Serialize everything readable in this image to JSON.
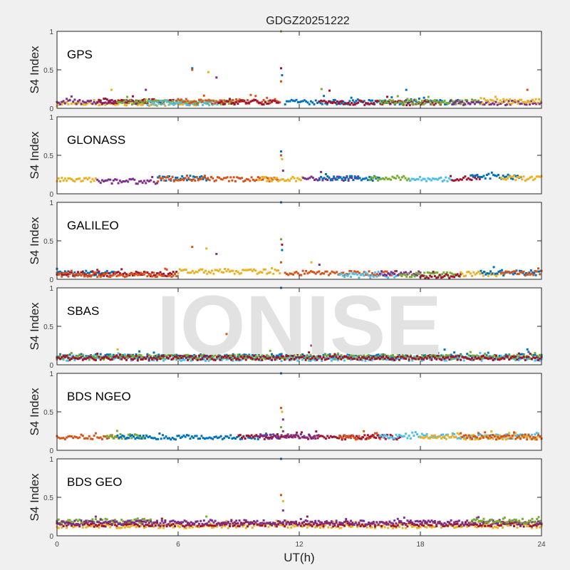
{
  "chart_data": {
    "type": "scatter",
    "title": "GDGZ20251222",
    "xlabel": "UT(h)",
    "ylabel": "S4 Index",
    "xlim": [
      0,
      24
    ],
    "ylim": [
      0,
      1
    ],
    "xticks": [
      "0",
      "6",
      "12",
      "18",
      "24"
    ],
    "yticks": [
      "0",
      "0.5",
      "1"
    ],
    "watermark": "IONISE",
    "colors": {
      "blue": "#0072BD",
      "orange": "#D95319",
      "yellow": "#EDB120",
      "purple": "#7E2F8E",
      "green": "#77AC30",
      "lightblue": "#4DBEEE",
      "red": "#A2142F"
    },
    "panels": [
      {
        "label": "GPS",
        "segments": [
          {
            "color": "yellow",
            "start": 0,
            "end": 7,
            "mean": 0.06
          },
          {
            "color": "purple",
            "start": 0,
            "end": 4.5,
            "mean": 0.08
          },
          {
            "color": "red",
            "start": 2,
            "end": 6,
            "mean": 0.09
          },
          {
            "color": "green",
            "start": 3,
            "end": 9,
            "mean": 0.08
          },
          {
            "color": "lightblue",
            "start": 4.5,
            "end": 8,
            "mean": 0.07
          },
          {
            "color": "orange",
            "start": 6,
            "end": 11.1,
            "mean": 0.09
          },
          {
            "color": "red",
            "start": 8,
            "end": 11,
            "mean": 0.08
          },
          {
            "color": "blue",
            "start": 11.3,
            "end": 20,
            "mean": 0.08
          },
          {
            "color": "red",
            "start": 13,
            "end": 19,
            "mean": 0.07
          },
          {
            "color": "green",
            "start": 16,
            "end": 21,
            "mean": 0.08
          },
          {
            "color": "purple",
            "start": 19.5,
            "end": 24,
            "mean": 0.07
          },
          {
            "color": "yellow",
            "start": 21,
            "end": 24,
            "mean": 0.09
          }
        ],
        "outliers": [
          [
            6.7,
            0.52
          ],
          [
            6.7,
            0.5
          ],
          [
            7.5,
            0.47
          ],
          [
            7.9,
            0.4
          ],
          [
            11.1,
            1.0
          ],
          [
            11.1,
            0.52
          ],
          [
            11.15,
            0.43
          ],
          [
            11.1,
            0.35
          ],
          [
            2.7,
            0.24
          ],
          [
            4.4,
            0.24
          ],
          [
            13.1,
            0.25
          ],
          [
            13.5,
            0.23
          ],
          [
            17.3,
            0.24
          ],
          [
            23.3,
            0.24
          ]
        ]
      },
      {
        "label": "GLONASS",
        "segments": [
          {
            "color": "yellow",
            "start": 0,
            "end": 2,
            "mean": 0.18
          },
          {
            "color": "purple",
            "start": 2,
            "end": 5,
            "mean": 0.16
          },
          {
            "color": "blue",
            "start": 5,
            "end": 7.5,
            "mean": 0.2
          },
          {
            "color": "orange",
            "start": 5,
            "end": 11,
            "mean": 0.19
          },
          {
            "color": "yellow",
            "start": 10,
            "end": 12.2,
            "mean": 0.19
          },
          {
            "color": "purple",
            "start": 12.2,
            "end": 15,
            "mean": 0.2
          },
          {
            "color": "blue",
            "start": 13,
            "end": 16,
            "mean": 0.2
          },
          {
            "color": "green",
            "start": 15.5,
            "end": 17.5,
            "mean": 0.2
          },
          {
            "color": "lightblue",
            "start": 17.5,
            "end": 19.5,
            "mean": 0.19
          },
          {
            "color": "red",
            "start": 19.5,
            "end": 21,
            "mean": 0.2
          },
          {
            "color": "blue",
            "start": 20.5,
            "end": 23,
            "mean": 0.22
          },
          {
            "color": "yellow",
            "start": 22,
            "end": 24,
            "mean": 0.2
          }
        ],
        "outliers": [
          [
            11.1,
            0.55
          ],
          [
            11.1,
            0.5
          ],
          [
            11.15,
            0.45
          ],
          [
            11.2,
            0.3
          ]
        ]
      },
      {
        "label": "GALILEO",
        "segments": [
          {
            "color": "blue",
            "start": 0,
            "end": 3,
            "mean": 0.08
          },
          {
            "color": "red",
            "start": 0,
            "end": 6,
            "mean": 0.07
          },
          {
            "color": "orange",
            "start": 0,
            "end": 6,
            "mean": 0.06
          },
          {
            "color": "yellow",
            "start": 6,
            "end": 11.1,
            "mean": 0.1
          },
          {
            "color": "orange",
            "start": 11.3,
            "end": 17,
            "mean": 0.08
          },
          {
            "color": "lightblue",
            "start": 14,
            "end": 17,
            "mean": 0.05
          },
          {
            "color": "purple",
            "start": 16,
            "end": 18,
            "mean": 0.08
          },
          {
            "color": "green",
            "start": 17,
            "end": 20,
            "mean": 0.06
          },
          {
            "color": "red",
            "start": 18,
            "end": 20,
            "mean": 0.04
          },
          {
            "color": "yellow",
            "start": 20,
            "end": 22,
            "mean": 0.07
          },
          {
            "color": "blue",
            "start": 21,
            "end": 24,
            "mean": 0.08
          },
          {
            "color": "orange",
            "start": 22,
            "end": 24,
            "mean": 0.08
          }
        ],
        "outliers": [
          [
            11.1,
            1.0
          ],
          [
            6.7,
            0.42
          ],
          [
            7.4,
            0.4
          ],
          [
            7.9,
            0.33
          ],
          [
            11.1,
            0.52
          ],
          [
            11.15,
            0.45
          ],
          [
            11.15,
            0.38
          ],
          [
            11.1,
            0.22
          ],
          [
            12.6,
            0.22
          ],
          [
            13,
            0.19
          ]
        ]
      },
      {
        "label": "SBAS",
        "segments": [
          {
            "color": "blue",
            "start": 0,
            "end": 24,
            "mean": 0.11
          },
          {
            "color": "lightblue",
            "start": 0,
            "end": 24,
            "mean": 0.08
          },
          {
            "color": "green",
            "start": 0,
            "end": 24,
            "mean": 0.1
          },
          {
            "color": "red",
            "start": 0,
            "end": 24,
            "mean": 0.09
          }
        ],
        "outliers": [
          [
            11.1,
            1.0
          ],
          [
            8.4,
            0.4
          ],
          [
            3,
            0.2
          ],
          [
            12.6,
            0.25
          ],
          [
            13,
            0.27
          ],
          [
            18.5,
            0.2
          ],
          [
            23.3,
            0.2
          ]
        ]
      },
      {
        "label": "BDS NGEO",
        "segments": [
          {
            "color": "orange",
            "start": 0,
            "end": 3,
            "mean": 0.17
          },
          {
            "color": "green",
            "start": 2.5,
            "end": 4.5,
            "mean": 0.18
          },
          {
            "color": "blue",
            "start": 3,
            "end": 11,
            "mean": 0.17
          },
          {
            "color": "red",
            "start": 9,
            "end": 15,
            "mean": 0.17
          },
          {
            "color": "purple",
            "start": 10,
            "end": 13,
            "mean": 0.18
          },
          {
            "color": "orange",
            "start": 14,
            "end": 16,
            "mean": 0.17
          },
          {
            "color": "red",
            "start": 15,
            "end": 17,
            "mean": 0.17
          },
          {
            "color": "lightblue",
            "start": 16,
            "end": 24,
            "mean": 0.18
          },
          {
            "color": "yellow",
            "start": 18,
            "end": 24,
            "mean": 0.17
          },
          {
            "color": "orange",
            "start": 20,
            "end": 24,
            "mean": 0.17
          }
        ],
        "outliers": [
          [
            11.1,
            1.0
          ],
          [
            11.1,
            0.55
          ],
          [
            11.15,
            0.5
          ],
          [
            11.2,
            0.4
          ],
          [
            11.1,
            0.3
          ]
        ]
      },
      {
        "label": "BDS GEO",
        "segments": [
          {
            "color": "yellow",
            "start": 0,
            "end": 24,
            "mean": 0.13
          },
          {
            "color": "red",
            "start": 0,
            "end": 24,
            "mean": 0.15
          },
          {
            "color": "green",
            "start": 0,
            "end": 4.8,
            "mean": 0.19
          },
          {
            "color": "purple",
            "start": 0,
            "end": 24,
            "mean": 0.17
          },
          {
            "color": "green",
            "start": 20.5,
            "end": 24,
            "mean": 0.19
          }
        ],
        "outliers": [
          [
            11.1,
            1.0
          ],
          [
            11.1,
            0.53
          ],
          [
            11.2,
            0.45
          ],
          [
            11.2,
            0.33
          ],
          [
            7.4,
            0.25
          ],
          [
            12.4,
            0.25
          ]
        ]
      }
    ]
  }
}
